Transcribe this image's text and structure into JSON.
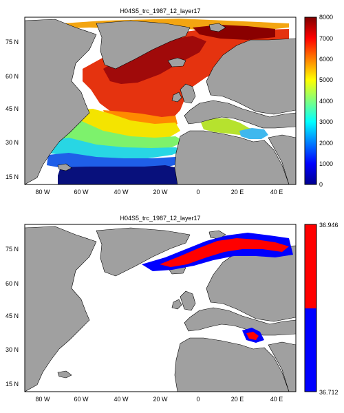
{
  "panels": [
    {
      "title": "H04S5_trc_1987_12_layer17",
      "lat_labels": [
        "75",
        "60",
        "45",
        "30",
        "15"
      ],
      "lat_suffix": "N",
      "lon_labels": [
        "80",
        "60",
        "40",
        "20",
        "0",
        "20",
        "40"
      ],
      "lon_suffixes": [
        "W",
        "W",
        "W",
        "W",
        "",
        "E",
        "E"
      ],
      "colorbar": {
        "colormap": "jet",
        "ticks": [
          "0",
          "1000",
          "2000",
          "3000",
          "4000",
          "5000",
          "6000",
          "7000",
          "8000"
        ]
      }
    },
    {
      "title": "H04S5_trc_1987_12_layer17",
      "lat_labels": [
        "75",
        "60",
        "45",
        "30",
        "15"
      ],
      "lat_suffix": "N",
      "lon_labels": [
        "80",
        "60",
        "40",
        "20",
        "0",
        "20",
        "40"
      ],
      "lon_suffixes": [
        "W",
        "W",
        "W",
        "W",
        "",
        "E",
        "E"
      ],
      "colorbar": {
        "colormap": "two-color",
        "colors": [
          "#0000ff",
          "#ff0000"
        ],
        "ticks": [
          "36.712",
          "36.946"
        ]
      }
    }
  ],
  "colors": {
    "land": "#a0a0a0",
    "ocean_no_data": "#ffffff",
    "outline": "#000000"
  }
}
